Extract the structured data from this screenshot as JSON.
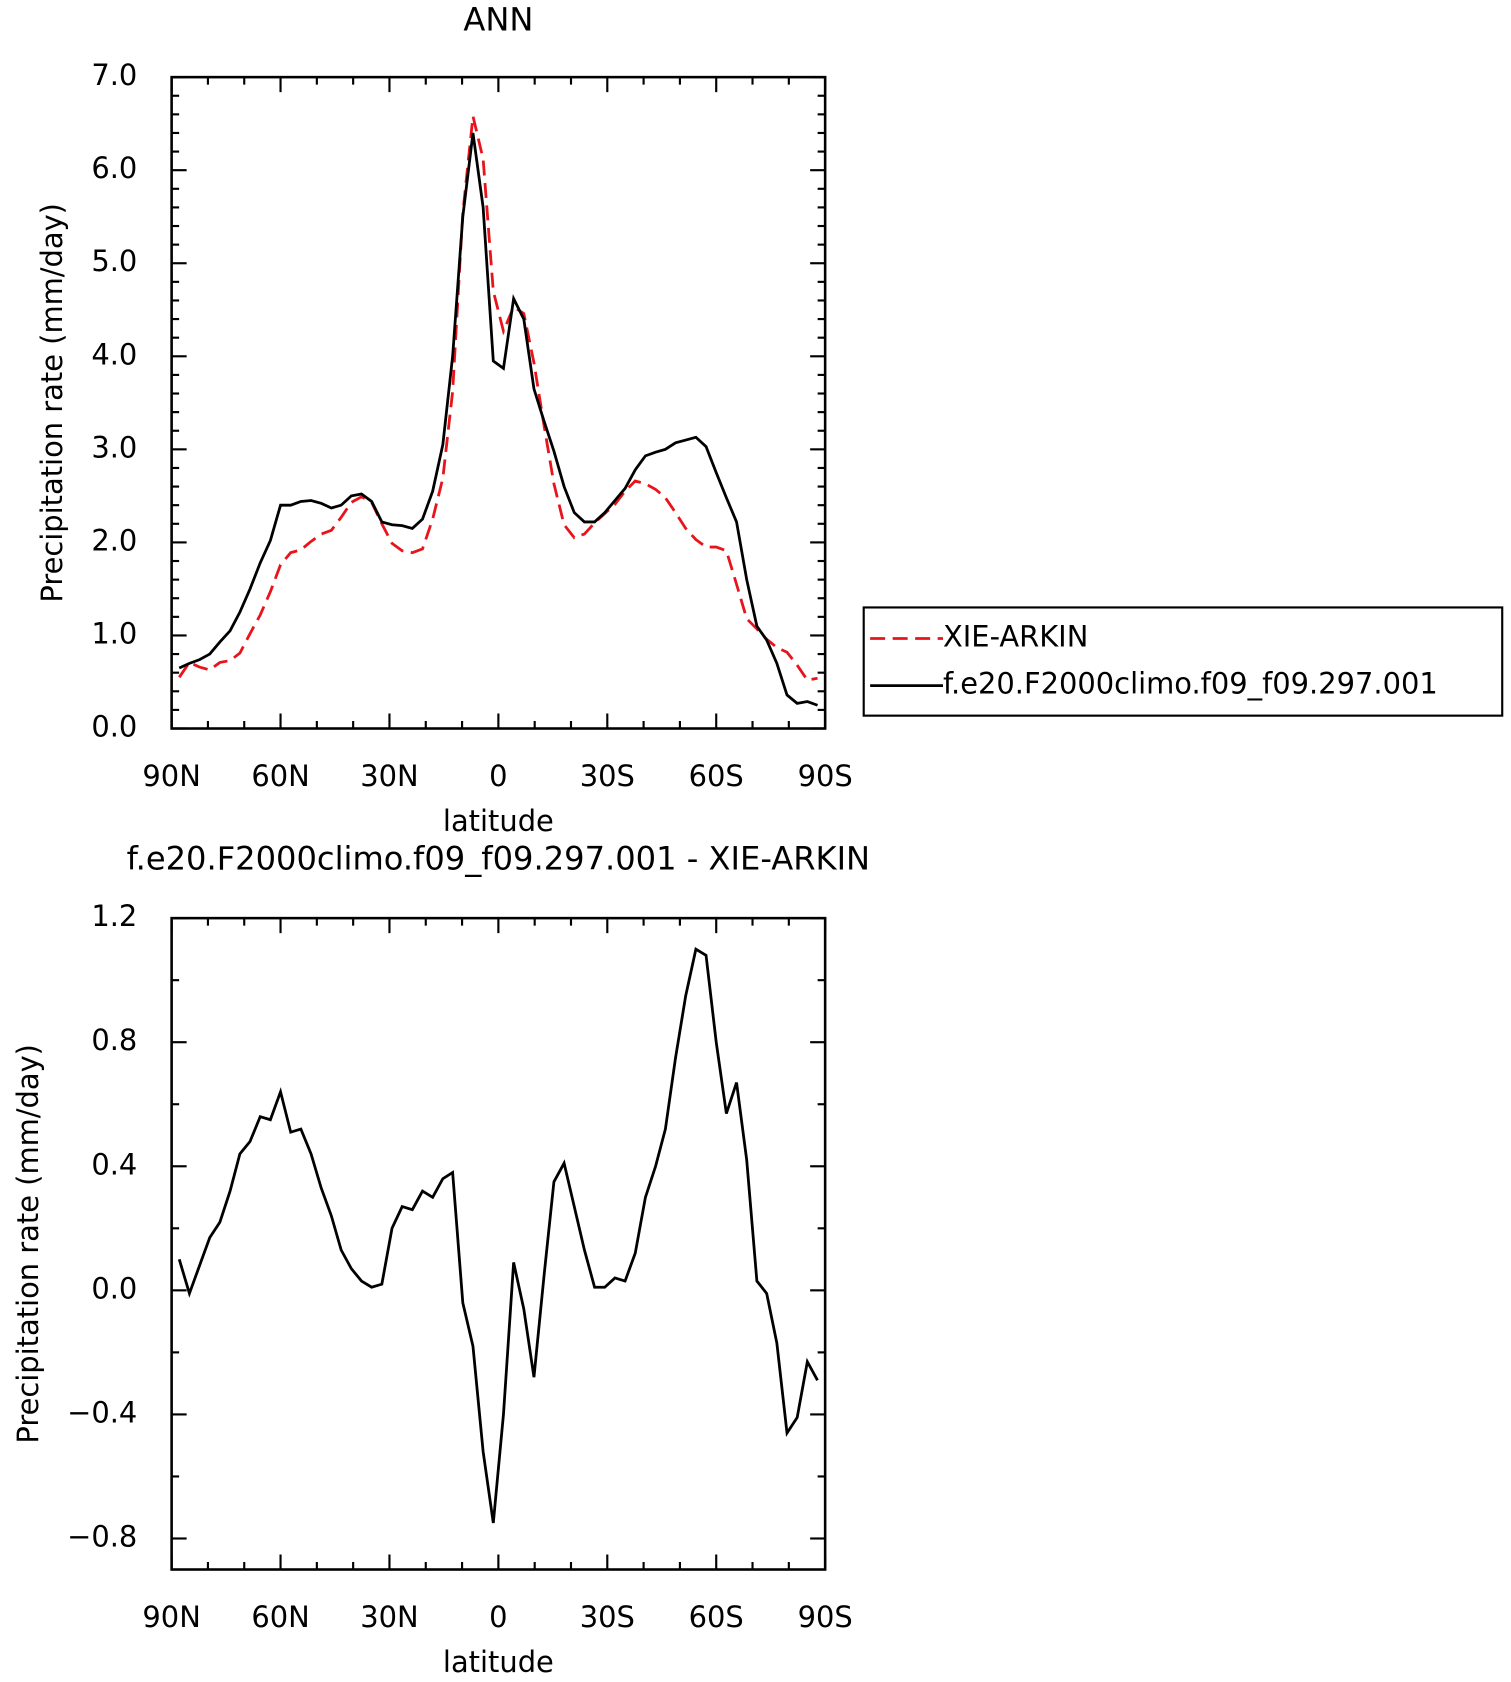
{
  "chart_data": [
    {
      "type": "line",
      "title": "ANN",
      "xlabel": "latitude",
      "ylabel": "Precipitation rate (mm/day)",
      "x": [
        87.9,
        85.1,
        82.3,
        79.5,
        76.7,
        73.9,
        71.2,
        68.4,
        65.6,
        62.8,
        60.0,
        57.2,
        54.4,
        51.6,
        48.8,
        46.0,
        43.3,
        40.5,
        37.7,
        34.9,
        32.1,
        29.3,
        26.5,
        23.7,
        20.9,
        18.1,
        15.3,
        12.6,
        9.8,
        7.0,
        4.2,
        1.4,
        -1.4,
        -4.2,
        -7.0,
        -9.8,
        -12.6,
        -15.3,
        -18.1,
        -20.9,
        -23.7,
        -26.5,
        -29.3,
        -32.1,
        -34.9,
        -37.7,
        -40.5,
        -43.3,
        -46.0,
        -48.8,
        -51.6,
        -54.4,
        -57.2,
        -60.0,
        -62.8,
        -65.6,
        -68.4,
        -71.2,
        -73.9,
        -76.7,
        -79.5,
        -82.3,
        -85.1,
        -87.9
      ],
      "xlim": [
        90,
        -90
      ],
      "xticks": [
        {
          "value": 90,
          "label": "90N"
        },
        {
          "value": 60,
          "label": "60N"
        },
        {
          "value": 30,
          "label": "30N"
        },
        0,
        {
          "value": -30,
          "label": "30S"
        },
        {
          "value": -60,
          "label": "60S"
        },
        {
          "value": -90,
          "label": "90S"
        }
      ],
      "ylim": [
        0,
        7
      ],
      "yticks": [
        {
          "value": 0,
          "label": "0.0"
        },
        {
          "value": 1,
          "label": "1.0"
        },
        {
          "value": 2,
          "label": "2.0"
        },
        {
          "value": 3,
          "label": "3.0"
        },
        {
          "value": 4,
          "label": "4.0"
        },
        {
          "value": 5,
          "label": "5.0"
        },
        {
          "value": 6,
          "label": "6.0"
        },
        {
          "value": 7,
          "label": "7.0"
        }
      ],
      "legend": "right",
      "series": [
        {
          "name": "XIE-ARKIN",
          "color": "#e8141b",
          "dashed": true,
          "values": [
            0.55,
            0.71,
            0.66,
            0.63,
            0.71,
            0.73,
            0.81,
            1.02,
            1.22,
            1.47,
            1.76,
            1.89,
            1.92,
            2.01,
            2.09,
            2.13,
            2.27,
            2.43,
            2.49,
            2.43,
            2.2,
            1.99,
            1.91,
            1.89,
            1.93,
            2.25,
            2.69,
            3.62,
            5.54,
            6.58,
            6.12,
            4.7,
            4.27,
            4.53,
            4.46,
            3.93,
            3.25,
            2.63,
            2.19,
            2.05,
            2.09,
            2.21,
            2.31,
            2.41,
            2.55,
            2.66,
            2.63,
            2.57,
            2.48,
            2.32,
            2.15,
            2.03,
            1.95,
            1.95,
            1.91,
            1.55,
            1.18,
            1.07,
            0.96,
            0.87,
            0.82,
            0.68,
            0.52,
            0.54
          ]
        },
        {
          "name": "f.e20.F2000climo.f09_f09.297.001",
          "color": "#000000",
          "dashed": false,
          "values": [
            0.65,
            0.7,
            0.74,
            0.8,
            0.93,
            1.05,
            1.25,
            1.5,
            1.78,
            2.02,
            2.4,
            2.4,
            2.44,
            2.45,
            2.42,
            2.37,
            2.4,
            2.5,
            2.52,
            2.44,
            2.22,
            2.19,
            2.18,
            2.15,
            2.25,
            2.55,
            3.05,
            4.0,
            5.5,
            6.4,
            5.6,
            3.95,
            3.87,
            4.62,
            4.4,
            3.65,
            3.3,
            2.98,
            2.6,
            2.32,
            2.22,
            2.22,
            2.32,
            2.45,
            2.58,
            2.78,
            2.93,
            2.97,
            3.0,
            3.07,
            3.1,
            3.13,
            3.03,
            2.75,
            2.48,
            2.22,
            1.6,
            1.1,
            0.95,
            0.7,
            0.36,
            0.27,
            0.29,
            0.25
          ]
        }
      ]
    },
    {
      "type": "line",
      "title": "f.e20.F2000climo.f09_f09.297.001 - XIE-ARKIN",
      "xlabel": "latitude",
      "ylabel": "Precipitation rate (mm/day)",
      "x": [
        87.9,
        85.1,
        82.3,
        79.5,
        76.7,
        73.9,
        71.2,
        68.4,
        65.6,
        62.8,
        60.0,
        57.2,
        54.4,
        51.6,
        48.8,
        46.0,
        43.3,
        40.5,
        37.7,
        34.9,
        32.1,
        29.3,
        26.5,
        23.7,
        20.9,
        18.1,
        15.3,
        12.6,
        9.8,
        7.0,
        4.2,
        1.4,
        -1.4,
        -4.2,
        -7.0,
        -9.8,
        -12.6,
        -15.3,
        -18.1,
        -20.9,
        -23.7,
        -26.5,
        -29.3,
        -32.1,
        -34.9,
        -37.7,
        -40.5,
        -43.3,
        -46.0,
        -48.8,
        -51.6,
        -54.4,
        -57.2,
        -60.0,
        -62.8,
        -65.6,
        -68.4,
        -71.2,
        -73.9,
        -76.7,
        -79.5,
        -82.3,
        -85.1,
        -87.9
      ],
      "xlim": [
        90,
        -90
      ],
      "xticks": [
        {
          "value": 90,
          "label": "90N"
        },
        {
          "value": 60,
          "label": "60N"
        },
        {
          "value": 30,
          "label": "30N"
        },
        0,
        {
          "value": -30,
          "label": "30S"
        },
        {
          "value": -60,
          "label": "60S"
        },
        {
          "value": -90,
          "label": "90S"
        }
      ],
      "ylim": [
        -0.9,
        1.2
      ],
      "yticks": [
        {
          "value": -0.8,
          "label": "−0.8"
        },
        {
          "value": -0.4,
          "label": "−0.4"
        },
        {
          "value": 0,
          "label": "0.0"
        },
        0.4,
        0.8,
        1.2
      ],
      "series": [
        {
          "color": "#000000",
          "dashed": false,
          "values": [
            0.1,
            -0.01,
            0.08,
            0.17,
            0.22,
            0.32,
            0.44,
            0.48,
            0.56,
            0.55,
            0.64,
            0.51,
            0.52,
            0.44,
            0.33,
            0.24,
            0.13,
            0.07,
            0.03,
            0.01,
            0.02,
            0.2,
            0.27,
            0.26,
            0.32,
            0.3,
            0.36,
            0.38,
            -0.04,
            -0.18,
            -0.52,
            -0.75,
            -0.4,
            0.09,
            -0.06,
            -0.28,
            0.05,
            0.35,
            0.41,
            0.27,
            0.13,
            0.01,
            0.01,
            0.04,
            0.03,
            0.12,
            0.3,
            0.4,
            0.52,
            0.75,
            0.95,
            1.1,
            1.08,
            0.8,
            0.57,
            0.67,
            0.42,
            0.03,
            -0.01,
            -0.17,
            -0.46,
            -0.41,
            -0.23,
            -0.29
          ]
        }
      ]
    }
  ]
}
